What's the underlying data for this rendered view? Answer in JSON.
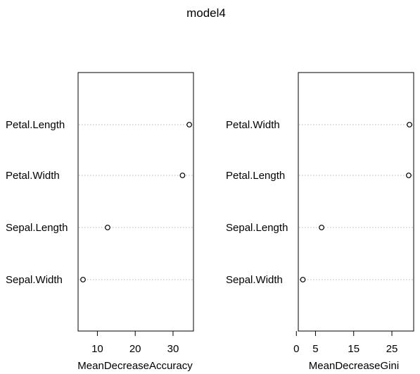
{
  "chart_data": [
    {
      "type": "scatter",
      "title": "model4",
      "xlabel": "MeanDecreaseAccuracy",
      "categories": [
        "Petal.Length",
        "Petal.Width",
        "Sepal.Length",
        "Sepal.Width"
      ],
      "values": [
        34.3,
        32.5,
        12.7,
        6.2
      ],
      "xticks": [
        10,
        20,
        30
      ],
      "xlim": [
        4.9,
        35.4
      ],
      "grid": "dotted horizontal lines per category"
    },
    {
      "type": "scatter",
      "xlabel": "MeanDecreaseGini",
      "categories": [
        "Petal.Width",
        "Petal.Length",
        "Sepal.Length",
        "Sepal.Width"
      ],
      "values": [
        29.6,
        29.4,
        6.6,
        1.7
      ],
      "xticks": [
        0,
        5,
        15,
        25
      ],
      "xlim": [
        0.5,
        30.7
      ],
      "grid": "dotted horizontal lines per category"
    }
  ]
}
